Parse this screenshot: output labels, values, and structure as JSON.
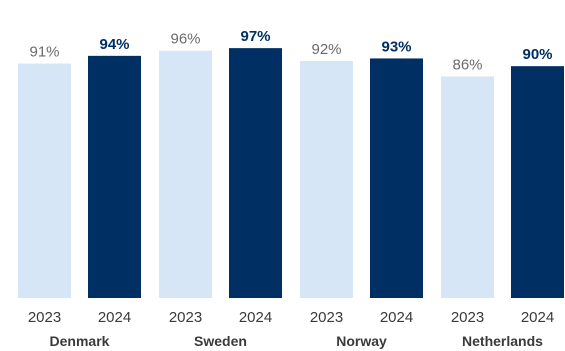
{
  "chart_data": {
    "type": "bar",
    "groups": [
      {
        "country": "Denmark",
        "bars": [
          {
            "year": "2023",
            "value": 91,
            "label": "91%"
          },
          {
            "year": "2024",
            "value": 94,
            "label": "94%"
          }
        ]
      },
      {
        "country": "Sweden",
        "bars": [
          {
            "year": "2023",
            "value": 96,
            "label": "96%"
          },
          {
            "year": "2024",
            "value": 97,
            "label": "97%"
          }
        ]
      },
      {
        "country": "Norway",
        "bars": [
          {
            "year": "2023",
            "value": 92,
            "label": "92%"
          },
          {
            "year": "2024",
            "value": 93,
            "label": "93%"
          }
        ]
      },
      {
        "country": "Netherlands",
        "bars": [
          {
            "year": "2023",
            "value": 86,
            "label": "86%"
          },
          {
            "year": "2024",
            "value": 90,
            "label": "90%"
          }
        ]
      }
    ],
    "ylim": [
      0,
      100
    ],
    "grid": false,
    "colors": {
      "2023": "#d6e6f7",
      "2024": "#002f63",
      "label_2023": "#6b6b6b",
      "label_2024": "#002f63"
    }
  }
}
